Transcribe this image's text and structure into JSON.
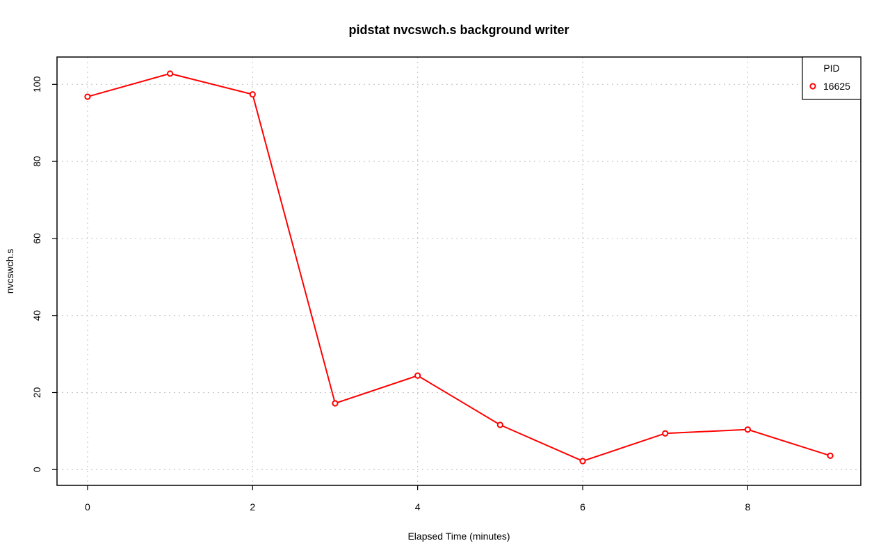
{
  "chart_data": {
    "type": "line",
    "title": "pidstat nvcswch.s background writer",
    "xlabel": "Elapsed Time (minutes)",
    "ylabel": "nvcswch.s",
    "x": [
      0,
      1,
      2,
      3,
      4,
      5,
      6,
      7,
      8,
      9
    ],
    "series": [
      {
        "name": "16625",
        "values": [
          96.8,
          102.8,
          97.4,
          17.2,
          24.4,
          11.6,
          2.2,
          9.4,
          10.4,
          3.6
        ],
        "color": "#ff0000"
      }
    ],
    "xlim": [
      -0.37,
      9.37
    ],
    "ylim": [
      -4.1,
      107.1
    ],
    "xticks": [
      0,
      2,
      4,
      6,
      8
    ],
    "yticks": [
      0,
      20,
      40,
      60,
      80,
      100
    ],
    "grid": true,
    "legend": {
      "title": "PID",
      "position": "top-right"
    }
  }
}
